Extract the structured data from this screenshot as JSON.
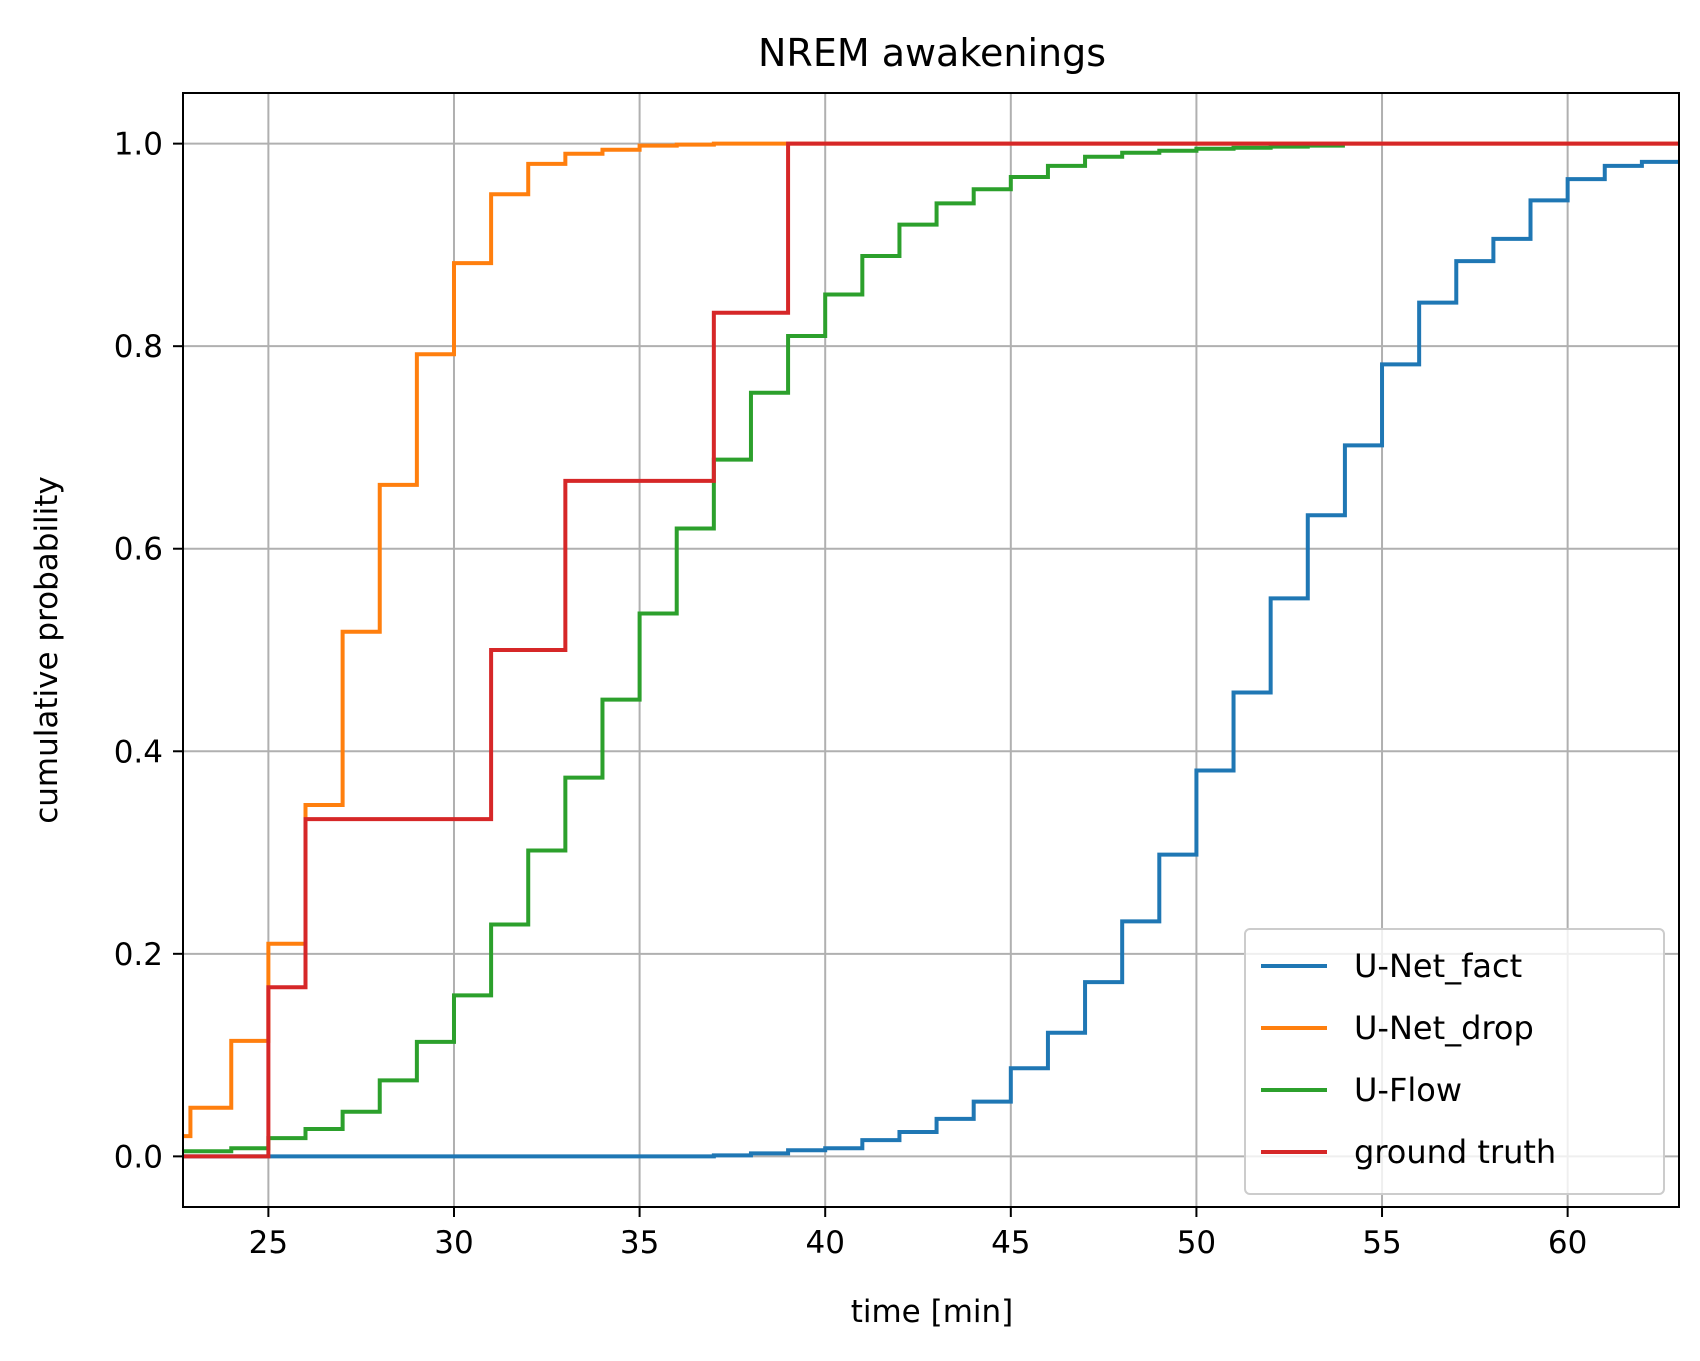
{
  "chart_data": {
    "type": "line",
    "title": "NREM awakenings",
    "xlabel": "time [min]",
    "ylabel": "cumulative probability",
    "xlim": [
      22.7,
      63
    ],
    "ylim": [
      -0.05,
      1.05
    ],
    "xticks": [
      25,
      30,
      35,
      40,
      45,
      50,
      55,
      60
    ],
    "xtick_labels": [
      "25",
      "30",
      "35",
      "40",
      "45",
      "50",
      "55",
      "60"
    ],
    "yticks": [
      0.0,
      0.2,
      0.4,
      0.6,
      0.8,
      1.0
    ],
    "ytick_labels": [
      "0.0",
      "0.2",
      "0.4",
      "0.6",
      "0.8",
      "1.0"
    ],
    "grid": true,
    "legend_position": "lower right",
    "step_style": "post",
    "series": [
      {
        "name": "U-Net_fact",
        "color": "#1f77b4",
        "x": [
          22.7,
          37,
          38,
          39,
          40,
          41,
          42,
          43,
          44,
          45,
          46,
          47,
          48,
          49,
          50,
          51,
          52,
          53,
          54,
          55,
          56,
          57,
          58,
          59,
          60,
          61,
          62,
          63
        ],
        "y": [
          0.0,
          0.001,
          0.003,
          0.006,
          0.008,
          0.016,
          0.024,
          0.037,
          0.054,
          0.087,
          0.122,
          0.172,
          0.232,
          0.298,
          0.381,
          0.458,
          0.551,
          0.633,
          0.702,
          0.782,
          0.843,
          0.884,
          0.906,
          0.944,
          0.965,
          0.978,
          0.982,
          0.982
        ]
      },
      {
        "name": "U-Net_drop",
        "color": "#ff7f0e",
        "x": [
          22.7,
          22.9,
          24,
          25,
          26,
          27,
          28,
          29,
          30,
          31,
          32,
          33,
          34,
          35,
          36,
          37,
          38,
          63
        ],
        "y": [
          0.02,
          0.048,
          0.114,
          0.21,
          0.347,
          0.518,
          0.663,
          0.792,
          0.882,
          0.95,
          0.98,
          0.99,
          0.994,
          0.998,
          0.999,
          1.0,
          1.0,
          1.0
        ]
      },
      {
        "name": "U-Flow",
        "color": "#2ca02c",
        "x": [
          22.7,
          24,
          25,
          26,
          27,
          28,
          29,
          30,
          31,
          32,
          33,
          34,
          35,
          36,
          37,
          38,
          39,
          40,
          41,
          42,
          43,
          44,
          45,
          46,
          47,
          48,
          49,
          50,
          51,
          52,
          53,
          54
        ],
        "y": [
          0.005,
          0.008,
          0.018,
          0.027,
          0.044,
          0.075,
          0.113,
          0.159,
          0.229,
          0.302,
          0.374,
          0.451,
          0.536,
          0.62,
          0.688,
          0.754,
          0.81,
          0.851,
          0.889,
          0.92,
          0.941,
          0.955,
          0.967,
          0.978,
          0.987,
          0.991,
          0.993,
          0.995,
          0.996,
          0.997,
          0.998,
          0.998
        ]
      },
      {
        "name": "ground truth",
        "color": "#d62728",
        "x": [
          22.7,
          25,
          26,
          31,
          33,
          37,
          39,
          63
        ],
        "y": [
          0.0,
          0.167,
          0.333,
          0.5,
          0.667,
          0.833,
          1.0,
          1.0
        ]
      }
    ]
  }
}
